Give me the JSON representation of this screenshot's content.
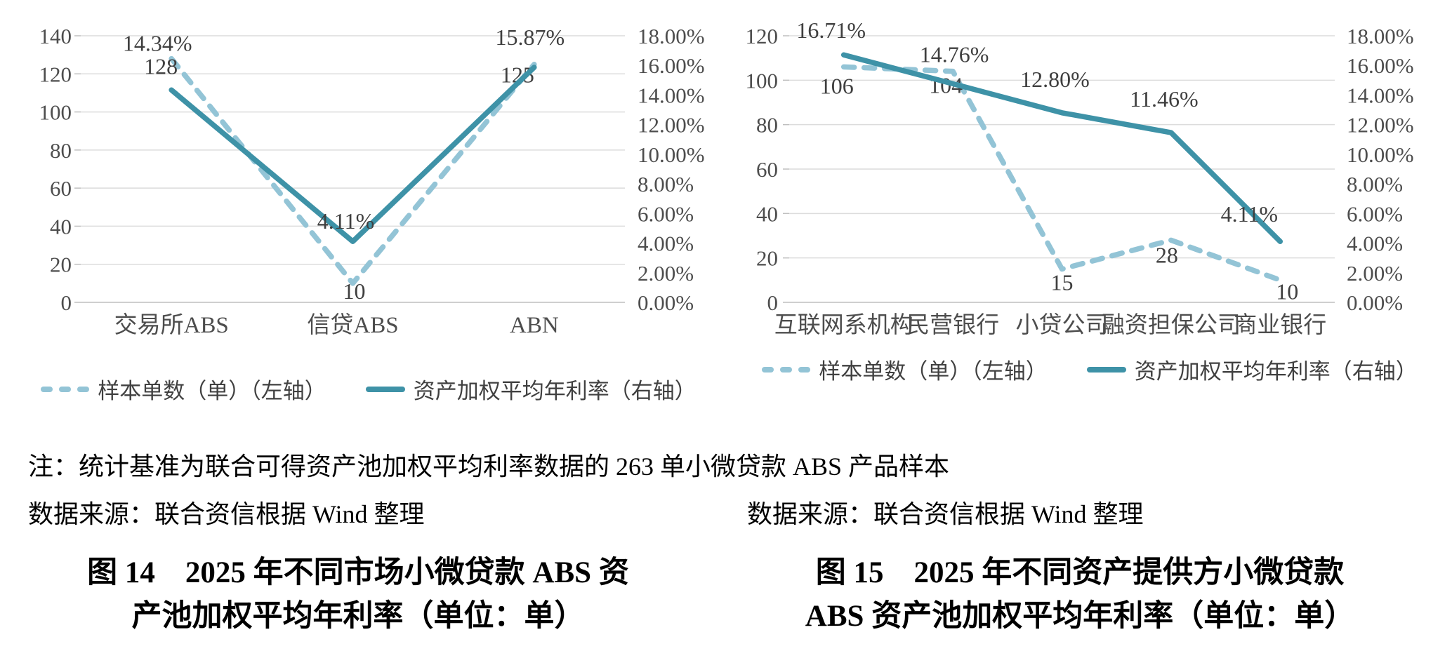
{
  "colors": {
    "solid_line": "#3E92A7",
    "dashed_line": "#93C4D6",
    "gridline": "#DCDCDC",
    "baseline": "#BFBFBF",
    "axis_text": "#4D4D4D",
    "data_label_text": "#3F3F3F",
    "body_text": "#000000"
  },
  "chart_data": [
    {
      "type": "line",
      "title": "",
      "categories": [
        "交易所ABS",
        "信贷ABS",
        "ABN"
      ],
      "series": [
        {
          "name": "样本单数（单）（左轴）",
          "axis": "left",
          "style": "dashed",
          "values": [
            128,
            10,
            125
          ],
          "labels": [
            "128",
            "10",
            "125"
          ],
          "label_offsets": [
            [
              -15,
              22
            ],
            [
              2,
              22
            ],
            [
              -24,
              26
            ]
          ]
        },
        {
          "name": "资产加权平均年利率（右轴）",
          "axis": "right",
          "style": "solid",
          "values": [
            14.34,
            4.11,
            15.87
          ],
          "labels": [
            "14.34%",
            "4.11%",
            "15.87%"
          ],
          "label_offsets": [
            [
              -20,
              -56
            ],
            [
              -10,
              -18
            ],
            [
              -6,
              -32
            ]
          ]
        }
      ],
      "left_axis": {
        "min": 0,
        "max": 140,
        "step": 20,
        "ticks": [
          "0",
          "20",
          "40",
          "60",
          "80",
          "100",
          "120",
          "140"
        ]
      },
      "right_axis": {
        "min": 0,
        "max": 18,
        "step": 2,
        "ticks": [
          "0.00%",
          "2.00%",
          "4.00%",
          "6.00%",
          "8.00%",
          "10.00%",
          "12.00%",
          "14.00%",
          "16.00%",
          "18.00%"
        ]
      },
      "legend_position": "bottom",
      "grid": true
    },
    {
      "type": "line",
      "title": "",
      "categories": [
        "互联网系机构",
        "民营银行",
        "小贷公司",
        "融资担保公司",
        "商业银行"
      ],
      "series": [
        {
          "name": "样本单数（单）（左轴）",
          "axis": "left",
          "style": "dashed",
          "values": [
            106,
            104,
            15,
            28,
            10
          ],
          "labels": [
            "106",
            "104",
            "15",
            "28",
            "10"
          ],
          "label_offsets": [
            [
              -10,
              38
            ],
            [
              -10,
              31
            ],
            [
              0,
              30
            ],
            [
              -6,
              32
            ],
            [
              10,
              27
            ]
          ]
        },
        {
          "name": "资产加权平均年利率（右轴）",
          "axis": "right",
          "style": "solid",
          "values": [
            16.71,
            14.76,
            12.8,
            11.46,
            4.11
          ],
          "labels": [
            "16.71%",
            "14.76%",
            "12.80%",
            "11.46%",
            "4.11%"
          ],
          "label_offsets": [
            [
              -18,
              -24
            ],
            [
              2,
              -31
            ],
            [
              -10,
              -37
            ],
            [
              -10,
              -37
            ],
            [
              -44,
              -28
            ]
          ]
        }
      ],
      "left_axis": {
        "min": 0,
        "max": 120,
        "step": 20,
        "ticks": [
          "0",
          "20",
          "40",
          "60",
          "80",
          "100",
          "120"
        ]
      },
      "right_axis": {
        "min": 0,
        "max": 18,
        "step": 2,
        "ticks": [
          "0.00%",
          "2.00%",
          "4.00%",
          "6.00%",
          "8.00%",
          "10.00%",
          "12.00%",
          "14.00%",
          "16.00%",
          "18.00%"
        ]
      },
      "legend_position": "bottom",
      "grid": true
    }
  ],
  "note": "注：统计基准为联合可得资产池加权平均利率数据的 263 单小微贷款 ABS 产品样本",
  "source_left": "数据来源：联合资信根据 Wind 整理",
  "source_right": "数据来源：联合资信根据 Wind 整理",
  "caption_left": {
    "line1": "图 14　2025 年不同市场小微贷款 ABS 资",
    "line2": "产池加权平均年利率（单位：单）"
  },
  "caption_right": {
    "line1": "图 15　2025 年不同资产提供方小微贷款",
    "line2": "ABS 资产池加权平均年利率（单位：单）"
  }
}
